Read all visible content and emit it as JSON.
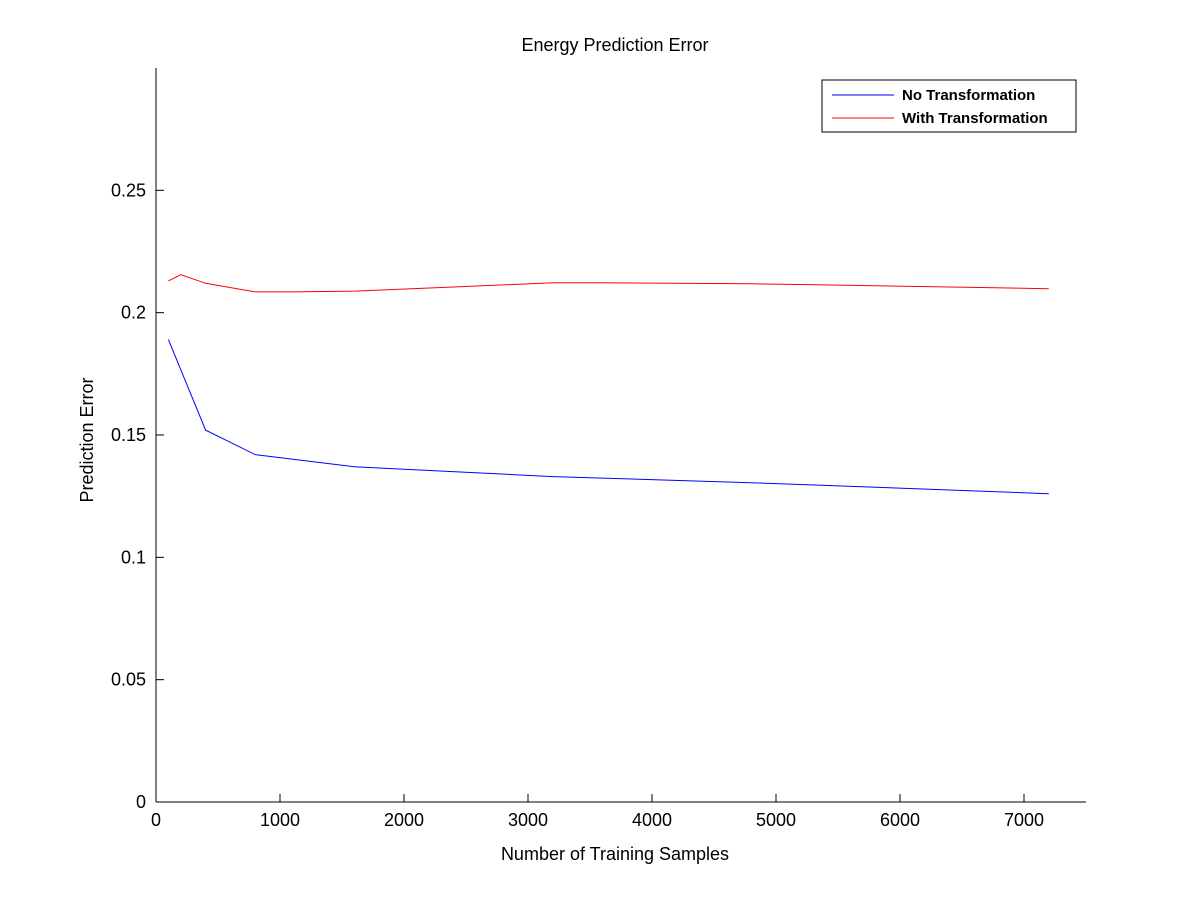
{
  "chart_data": {
    "type": "line",
    "title": "Energy Prediction Error",
    "xlabel": "Number of Training Samples",
    "ylabel": "Prediction Error",
    "xlim": [
      0,
      7500
    ],
    "ylim": [
      0,
      0.3
    ],
    "xticks": [
      0,
      1000,
      2000,
      3000,
      4000,
      5000,
      6000,
      7000
    ],
    "xtick_labels": [
      "0",
      "1000",
      "2000",
      "3000",
      "4000",
      "5000",
      "6000",
      "7000"
    ],
    "yticks": [
      0,
      0.05,
      0.1,
      0.15,
      0.2,
      0.25
    ],
    "ytick_labels": [
      "0",
      "0.05",
      "0.1",
      "0.15",
      "0.2",
      "0.25"
    ],
    "grid": false,
    "legend_position": "top-right",
    "series": [
      {
        "name": "No Transformation",
        "color": "#0000ff",
        "x": [
          100,
          400,
          800,
          1600,
          3200,
          4800,
          6400,
          7200
        ],
        "y": [
          0.189,
          0.152,
          0.142,
          0.137,
          0.133,
          0.1305,
          0.1275,
          0.126
        ]
      },
      {
        "name": "With Transformation",
        "color": "#ff0000",
        "x": [
          100,
          200,
          400,
          800,
          1100,
          1600,
          2400,
          3200,
          3600,
          4800,
          5200,
          6400,
          7200
        ],
        "y": [
          0.213,
          0.2155,
          0.212,
          0.2085,
          0.2085,
          0.2088,
          0.2105,
          0.2122,
          0.2122,
          0.2118,
          0.2115,
          0.2105,
          0.2098
        ]
      }
    ]
  }
}
